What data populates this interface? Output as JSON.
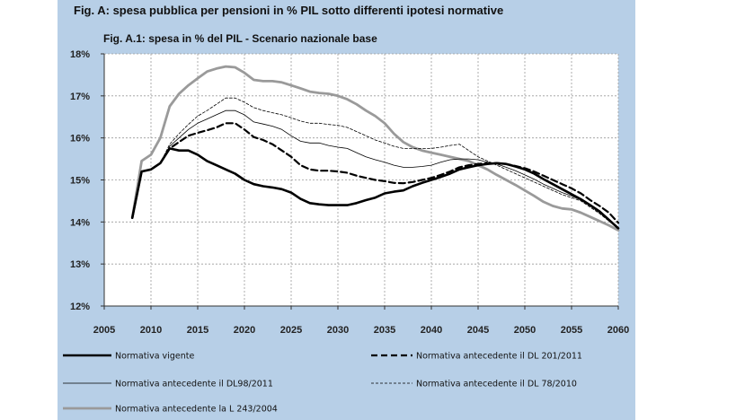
{
  "figure": {
    "title": "Fig. A: spesa pubblica per pensioni in % PIL sotto differenti ipotesi normative",
    "subtitle": "Fig. A.1: spesa in % del PIL - Scenario nazionale base"
  },
  "colors": {
    "panel_background": "#b7cfe7",
    "plot_background": "#ffffff",
    "series_black": "#000000",
    "series_grey": "#9a9a9a"
  },
  "chart_data": {
    "type": "line",
    "title": "Fig. A.1: spesa in % del PIL - Scenario nazionale base",
    "xlabel": "",
    "ylabel": "",
    "xlim": [
      2005,
      2060
    ],
    "ylim": [
      12,
      18
    ],
    "xticks": [
      2005,
      2010,
      2015,
      2020,
      2025,
      2030,
      2035,
      2040,
      2045,
      2050,
      2055,
      2060
    ],
    "yticks": [
      12,
      13,
      14,
      15,
      16,
      17,
      18
    ],
    "ytick_labels": [
      "12%",
      "13%",
      "14%",
      "15%",
      "16%",
      "17%",
      "18%"
    ],
    "grid": true,
    "legend_position": "bottom",
    "series": [
      {
        "name": "Normativa vigente",
        "style": "solid-thick",
        "color": "#000000",
        "points": [
          [
            2008,
            14.1
          ],
          [
            2009,
            15.2
          ],
          [
            2010,
            15.25
          ],
          [
            2011,
            15.4
          ],
          [
            2012,
            15.75
          ],
          [
            2013,
            15.7
          ],
          [
            2014,
            15.7
          ],
          [
            2015,
            15.6
          ],
          [
            2016,
            15.45
          ],
          [
            2017,
            15.35
          ],
          [
            2018,
            15.25
          ],
          [
            2019,
            15.15
          ],
          [
            2020,
            15.0
          ],
          [
            2021,
            14.9
          ],
          [
            2022,
            14.85
          ],
          [
            2023,
            14.82
          ],
          [
            2024,
            14.78
          ],
          [
            2025,
            14.7
          ],
          [
            2026,
            14.55
          ],
          [
            2027,
            14.45
          ],
          [
            2028,
            14.42
          ],
          [
            2029,
            14.4
          ],
          [
            2030,
            14.4
          ],
          [
            2031,
            14.4
          ],
          [
            2032,
            14.45
          ],
          [
            2033,
            14.52
          ],
          [
            2034,
            14.58
          ],
          [
            2035,
            14.68
          ],
          [
            2036,
            14.72
          ],
          [
            2037,
            14.75
          ],
          [
            2038,
            14.85
          ],
          [
            2039,
            14.93
          ],
          [
            2040,
            15.0
          ],
          [
            2041,
            15.07
          ],
          [
            2042,
            15.15
          ],
          [
            2043,
            15.25
          ],
          [
            2044,
            15.3
          ],
          [
            2045,
            15.35
          ],
          [
            2046,
            15.38
          ],
          [
            2047,
            15.4
          ],
          [
            2048,
            15.38
          ],
          [
            2049,
            15.32
          ],
          [
            2050,
            15.25
          ],
          [
            2051,
            15.15
          ],
          [
            2052,
            15.02
          ],
          [
            2053,
            14.9
          ],
          [
            2054,
            14.78
          ],
          [
            2055,
            14.66
          ],
          [
            2056,
            14.54
          ],
          [
            2057,
            14.4
          ],
          [
            2058,
            14.25
          ],
          [
            2059,
            14.05
          ],
          [
            2060,
            13.85
          ]
        ]
      },
      {
        "name": "Normativa antecedente  il DL 201/2011",
        "style": "dashed-thick",
        "color": "#000000",
        "points": [
          [
            2008,
            14.1
          ],
          [
            2009,
            15.2
          ],
          [
            2010,
            15.25
          ],
          [
            2011,
            15.4
          ],
          [
            2012,
            15.75
          ],
          [
            2013,
            15.9
          ],
          [
            2014,
            16.05
          ],
          [
            2015,
            16.12
          ],
          [
            2016,
            16.18
          ],
          [
            2017,
            16.25
          ],
          [
            2018,
            16.35
          ],
          [
            2019,
            16.35
          ],
          [
            2020,
            16.2
          ],
          [
            2021,
            16.02
          ],
          [
            2022,
            15.95
          ],
          [
            2023,
            15.85
          ],
          [
            2024,
            15.7
          ],
          [
            2025,
            15.55
          ],
          [
            2026,
            15.35
          ],
          [
            2027,
            15.25
          ],
          [
            2028,
            15.22
          ],
          [
            2029,
            15.22
          ],
          [
            2030,
            15.2
          ],
          [
            2031,
            15.17
          ],
          [
            2032,
            15.1
          ],
          [
            2033,
            15.05
          ],
          [
            2034,
            15.0
          ],
          [
            2035,
            14.97
          ],
          [
            2036,
            14.93
          ],
          [
            2037,
            14.92
          ],
          [
            2038,
            14.95
          ],
          [
            2039,
            15.0
          ],
          [
            2040,
            15.05
          ],
          [
            2041,
            15.12
          ],
          [
            2042,
            15.2
          ],
          [
            2043,
            15.3
          ],
          [
            2044,
            15.35
          ],
          [
            2045,
            15.38
          ],
          [
            2046,
            15.4
          ],
          [
            2047,
            15.4
          ],
          [
            2048,
            15.38
          ],
          [
            2049,
            15.33
          ],
          [
            2050,
            15.28
          ],
          [
            2051,
            15.2
          ],
          [
            2052,
            15.1
          ],
          [
            2053,
            15.0
          ],
          [
            2054,
            14.9
          ],
          [
            2055,
            14.8
          ],
          [
            2056,
            14.68
          ],
          [
            2057,
            14.52
          ],
          [
            2058,
            14.38
          ],
          [
            2059,
            14.22
          ],
          [
            2060,
            13.98
          ]
        ]
      },
      {
        "name": "Normativa antecedente il DL98/2011",
        "style": "solid-thin",
        "color": "#000000",
        "points": [
          [
            2008,
            14.1
          ],
          [
            2009,
            15.2
          ],
          [
            2010,
            15.25
          ],
          [
            2011,
            15.4
          ],
          [
            2012,
            15.8
          ],
          [
            2013,
            16.0
          ],
          [
            2014,
            16.2
          ],
          [
            2015,
            16.35
          ],
          [
            2016,
            16.45
          ],
          [
            2017,
            16.55
          ],
          [
            2018,
            16.65
          ],
          [
            2019,
            16.65
          ],
          [
            2020,
            16.55
          ],
          [
            2021,
            16.38
          ],
          [
            2022,
            16.33
          ],
          [
            2023,
            16.28
          ],
          [
            2024,
            16.2
          ],
          [
            2025,
            16.05
          ],
          [
            2026,
            15.92
          ],
          [
            2027,
            15.88
          ],
          [
            2028,
            15.88
          ],
          [
            2029,
            15.82
          ],
          [
            2030,
            15.78
          ],
          [
            2031,
            15.75
          ],
          [
            2032,
            15.65
          ],
          [
            2033,
            15.55
          ],
          [
            2034,
            15.48
          ],
          [
            2035,
            15.42
          ],
          [
            2036,
            15.35
          ],
          [
            2037,
            15.3
          ],
          [
            2038,
            15.3
          ],
          [
            2039,
            15.32
          ],
          [
            2040,
            15.35
          ],
          [
            2041,
            15.42
          ],
          [
            2042,
            15.48
          ],
          [
            2043,
            15.5
          ],
          [
            2044,
            15.5
          ],
          [
            2045,
            15.48
          ],
          [
            2046,
            15.42
          ],
          [
            2047,
            15.38
          ],
          [
            2048,
            15.3
          ],
          [
            2049,
            15.22
          ],
          [
            2050,
            15.12
          ],
          [
            2051,
            15.02
          ],
          [
            2052,
            14.9
          ],
          [
            2053,
            14.8
          ],
          [
            2054,
            14.7
          ],
          [
            2055,
            14.62
          ],
          [
            2056,
            14.52
          ],
          [
            2057,
            14.38
          ],
          [
            2058,
            14.22
          ],
          [
            2059,
            14.05
          ],
          [
            2060,
            13.85
          ]
        ]
      },
      {
        "name": "Normativa antecedente il DL 78/2010",
        "style": "dotted-thin",
        "color": "#000000",
        "points": [
          [
            2008,
            14.1
          ],
          [
            2009,
            15.2
          ],
          [
            2010,
            15.25
          ],
          [
            2011,
            15.4
          ],
          [
            2012,
            15.85
          ],
          [
            2013,
            16.1
          ],
          [
            2014,
            16.32
          ],
          [
            2015,
            16.52
          ],
          [
            2016,
            16.65
          ],
          [
            2017,
            16.8
          ],
          [
            2018,
            16.95
          ],
          [
            2019,
            16.95
          ],
          [
            2020,
            16.85
          ],
          [
            2021,
            16.72
          ],
          [
            2022,
            16.65
          ],
          [
            2023,
            16.6
          ],
          [
            2024,
            16.55
          ],
          [
            2025,
            16.48
          ],
          [
            2026,
            16.4
          ],
          [
            2027,
            16.35
          ],
          [
            2028,
            16.35
          ],
          [
            2029,
            16.32
          ],
          [
            2030,
            16.3
          ],
          [
            2031,
            16.25
          ],
          [
            2032,
            16.15
          ],
          [
            2033,
            16.05
          ],
          [
            2034,
            15.95
          ],
          [
            2035,
            15.88
          ],
          [
            2036,
            15.8
          ],
          [
            2037,
            15.75
          ],
          [
            2038,
            15.75
          ],
          [
            2039,
            15.75
          ],
          [
            2040,
            15.75
          ],
          [
            2041,
            15.78
          ],
          [
            2042,
            15.82
          ],
          [
            2043,
            15.85
          ],
          [
            2044,
            15.7
          ],
          [
            2045,
            15.55
          ],
          [
            2046,
            15.45
          ],
          [
            2047,
            15.35
          ],
          [
            2048,
            15.25
          ],
          [
            2049,
            15.15
          ],
          [
            2050,
            15.05
          ],
          [
            2051,
            14.95
          ],
          [
            2052,
            14.85
          ],
          [
            2053,
            14.75
          ],
          [
            2054,
            14.65
          ],
          [
            2055,
            14.58
          ],
          [
            2056,
            14.5
          ],
          [
            2057,
            14.35
          ],
          [
            2058,
            14.2
          ],
          [
            2059,
            14.02
          ],
          [
            2060,
            13.85
          ]
        ]
      },
      {
        "name": "Normativa antecedente la L 243/2004",
        "style": "solid-grey",
        "color": "#9a9a9a",
        "points": [
          [
            2008,
            14.1
          ],
          [
            2009,
            15.45
          ],
          [
            2010,
            15.6
          ],
          [
            2011,
            16.0
          ],
          [
            2012,
            16.75
          ],
          [
            2013,
            17.05
          ],
          [
            2014,
            17.25
          ],
          [
            2015,
            17.42
          ],
          [
            2016,
            17.58
          ],
          [
            2017,
            17.65
          ],
          [
            2018,
            17.7
          ],
          [
            2019,
            17.68
          ],
          [
            2020,
            17.55
          ],
          [
            2021,
            17.38
          ],
          [
            2022,
            17.35
          ],
          [
            2023,
            17.35
          ],
          [
            2024,
            17.32
          ],
          [
            2025,
            17.25
          ],
          [
            2026,
            17.18
          ],
          [
            2027,
            17.1
          ],
          [
            2028,
            17.07
          ],
          [
            2029,
            17.05
          ],
          [
            2030,
            17.0
          ],
          [
            2031,
            16.92
          ],
          [
            2032,
            16.8
          ],
          [
            2033,
            16.65
          ],
          [
            2034,
            16.52
          ],
          [
            2035,
            16.35
          ],
          [
            2036,
            16.1
          ],
          [
            2037,
            15.9
          ],
          [
            2038,
            15.78
          ],
          [
            2039,
            15.7
          ],
          [
            2040,
            15.65
          ],
          [
            2041,
            15.6
          ],
          [
            2042,
            15.55
          ],
          [
            2043,
            15.5
          ],
          [
            2044,
            15.45
          ],
          [
            2045,
            15.35
          ],
          [
            2046,
            15.25
          ],
          [
            2047,
            15.12
          ],
          [
            2048,
            15.0
          ],
          [
            2049,
            14.88
          ],
          [
            2050,
            14.75
          ],
          [
            2051,
            14.62
          ],
          [
            2052,
            14.48
          ],
          [
            2053,
            14.38
          ],
          [
            2054,
            14.32
          ],
          [
            2055,
            14.3
          ],
          [
            2056,
            14.22
          ],
          [
            2057,
            14.12
          ],
          [
            2058,
            14.02
          ],
          [
            2059,
            13.92
          ],
          [
            2060,
            13.8
          ]
        ]
      }
    ]
  }
}
